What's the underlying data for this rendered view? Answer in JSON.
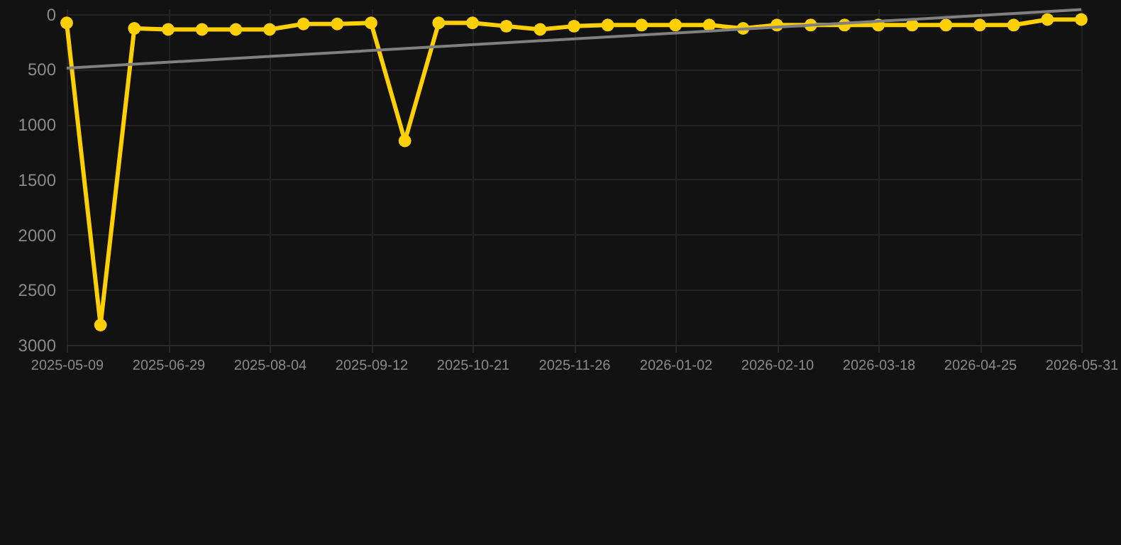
{
  "chart_data": {
    "type": "line",
    "categories": [
      "2025-05-09",
      null,
      null,
      "2025-06-29",
      null,
      null,
      "2025-08-04",
      null,
      null,
      "2025-09-12",
      null,
      null,
      "2025-10-21",
      null,
      null,
      "2025-11-26",
      null,
      null,
      "2026-01-02",
      null,
      null,
      "2026-02-10",
      null,
      null,
      "2026-03-18",
      null,
      null,
      "2026-04-25",
      null,
      null,
      "2026-05-31"
    ],
    "series": [
      {
        "color": "#ffd000",
        "marker": "circle",
        "values": [
          80,
          2820,
          130,
          140,
          140,
          140,
          140,
          90,
          90,
          80,
          1150,
          80,
          80,
          110,
          140,
          110,
          100,
          100,
          100,
          100,
          130,
          100,
          100,
          100,
          100,
          100,
          100,
          100,
          100,
          50,
          50
        ]
      },
      {
        "type": "line",
        "color": "#808080",
        "marker": "none",
        "values": [
          490,
          null,
          null,
          null,
          null,
          null,
          null,
          null,
          null,
          null,
          null,
          null,
          null,
          null,
          null,
          null,
          null,
          null,
          null,
          null,
          null,
          null,
          null,
          null,
          null,
          null,
          null,
          null,
          null,
          null,
          -40
        ]
      }
    ],
    "ylim": [
      3000,
      -50
    ],
    "yticks": [
      0,
      500,
      1000,
      1500,
      2000,
      2500,
      3000
    ],
    "grid": true
  }
}
